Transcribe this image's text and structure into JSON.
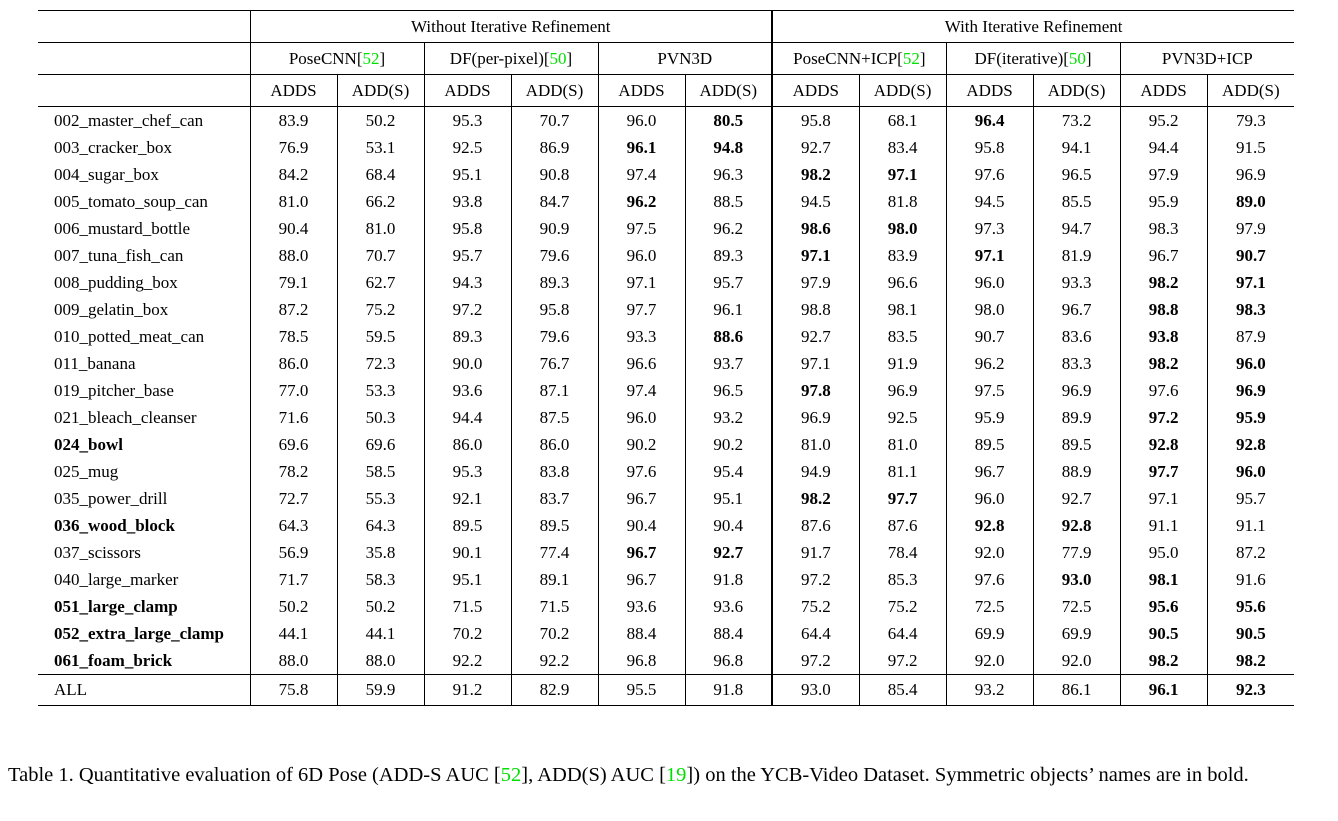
{
  "colors": {
    "citation_green": "#00e000"
  },
  "table": {
    "group_headers": [
      {
        "label": "Without Iterative Refinement"
      },
      {
        "label": "With Iterative Refinement"
      }
    ],
    "methods": [
      {
        "pre": "PoseCNN[",
        "cite": "52",
        "post": "]"
      },
      {
        "pre": "DF(per-pixel)[",
        "cite": "50",
        "post": "]"
      },
      {
        "pre": "PVN3D",
        "cite": "",
        "post": ""
      },
      {
        "pre": "PoseCNN+ICP[",
        "cite": "52",
        "post": "]"
      },
      {
        "pre": "DF(iterative)[",
        "cite": "50",
        "post": "]"
      },
      {
        "pre": "PVN3D+ICP",
        "cite": "",
        "post": ""
      }
    ],
    "metric_headers": [
      "ADDS",
      "ADD(S)"
    ],
    "rows": [
      {
        "name": "002_master_chef_can",
        "name_bold": false,
        "values": [
          "83.9",
          "50.2",
          "95.3",
          "70.7",
          "96.0",
          "80.5",
          "95.8",
          "68.1",
          "96.4",
          "73.2",
          "95.2",
          "79.3"
        ],
        "bold": [
          5,
          8
        ]
      },
      {
        "name": "003_cracker_box",
        "name_bold": false,
        "values": [
          "76.9",
          "53.1",
          "92.5",
          "86.9",
          "96.1",
          "94.8",
          "92.7",
          "83.4",
          "95.8",
          "94.1",
          "94.4",
          "91.5"
        ],
        "bold": [
          4,
          5
        ]
      },
      {
        "name": "004_sugar_box",
        "name_bold": false,
        "values": [
          "84.2",
          "68.4",
          "95.1",
          "90.8",
          "97.4",
          "96.3",
          "98.2",
          "97.1",
          "97.6",
          "96.5",
          "97.9",
          "96.9"
        ],
        "bold": [
          6,
          7
        ]
      },
      {
        "name": "005_tomato_soup_can",
        "name_bold": false,
        "values": [
          "81.0",
          "66.2",
          "93.8",
          "84.7",
          "96.2",
          "88.5",
          "94.5",
          "81.8",
          "94.5",
          "85.5",
          "95.9",
          "89.0"
        ],
        "bold": [
          4,
          11
        ]
      },
      {
        "name": "006_mustard_bottle",
        "name_bold": false,
        "values": [
          "90.4",
          "81.0",
          "95.8",
          "90.9",
          "97.5",
          "96.2",
          "98.6",
          "98.0",
          "97.3",
          "94.7",
          "98.3",
          "97.9"
        ],
        "bold": [
          6,
          7
        ]
      },
      {
        "name": "007_tuna_fish_can",
        "name_bold": false,
        "values": [
          "88.0",
          "70.7",
          "95.7",
          "79.6",
          "96.0",
          "89.3",
          "97.1",
          "83.9",
          "97.1",
          "81.9",
          "96.7",
          "90.7"
        ],
        "bold": [
          6,
          8,
          11
        ]
      },
      {
        "name": "008_pudding_box",
        "name_bold": false,
        "values": [
          "79.1",
          "62.7",
          "94.3",
          "89.3",
          "97.1",
          "95.7",
          "97.9",
          "96.6",
          "96.0",
          "93.3",
          "98.2",
          "97.1"
        ],
        "bold": [
          10,
          11
        ]
      },
      {
        "name": "009_gelatin_box",
        "name_bold": false,
        "values": [
          "87.2",
          "75.2",
          "97.2",
          "95.8",
          "97.7",
          "96.1",
          "98.8",
          "98.1",
          "98.0",
          "96.7",
          "98.8",
          "98.3"
        ],
        "bold": [
          10,
          11
        ]
      },
      {
        "name": "010_potted_meat_can",
        "name_bold": false,
        "values": [
          "78.5",
          "59.5",
          "89.3",
          "79.6",
          "93.3",
          "88.6",
          "92.7",
          "83.5",
          "90.7",
          "83.6",
          "93.8",
          "87.9"
        ],
        "bold": [
          5,
          10
        ]
      },
      {
        "name": "011_banana",
        "name_bold": false,
        "values": [
          "86.0",
          "72.3",
          "90.0",
          "76.7",
          "96.6",
          "93.7",
          "97.1",
          "91.9",
          "96.2",
          "83.3",
          "98.2",
          "96.0"
        ],
        "bold": [
          10,
          11
        ]
      },
      {
        "name": "019_pitcher_base",
        "name_bold": false,
        "values": [
          "77.0",
          "53.3",
          "93.6",
          "87.1",
          "97.4",
          "96.5",
          "97.8",
          "96.9",
          "97.5",
          "96.9",
          "97.6",
          "96.9"
        ],
        "bold": [
          6,
          11
        ]
      },
      {
        "name": "021_bleach_cleanser",
        "name_bold": false,
        "values": [
          "71.6",
          "50.3",
          "94.4",
          "87.5",
          "96.0",
          "93.2",
          "96.9",
          "92.5",
          "95.9",
          "89.9",
          "97.2",
          "95.9"
        ],
        "bold": [
          10,
          11
        ]
      },
      {
        "name": "024_bowl",
        "name_bold": true,
        "values": [
          "69.6",
          "69.6",
          "86.0",
          "86.0",
          "90.2",
          "90.2",
          "81.0",
          "81.0",
          "89.5",
          "89.5",
          "92.8",
          "92.8"
        ],
        "bold": [
          10,
          11
        ]
      },
      {
        "name": "025_mug",
        "name_bold": false,
        "values": [
          "78.2",
          "58.5",
          "95.3",
          "83.8",
          "97.6",
          "95.4",
          "94.9",
          "81.1",
          "96.7",
          "88.9",
          "97.7",
          "96.0"
        ],
        "bold": [
          10,
          11
        ]
      },
      {
        "name": "035_power_drill",
        "name_bold": false,
        "values": [
          "72.7",
          "55.3",
          "92.1",
          "83.7",
          "96.7",
          "95.1",
          "98.2",
          "97.7",
          "96.0",
          "92.7",
          "97.1",
          "95.7"
        ],
        "bold": [
          6,
          7
        ]
      },
      {
        "name": "036_wood_block",
        "name_bold": true,
        "values": [
          "64.3",
          "64.3",
          "89.5",
          "89.5",
          "90.4",
          "90.4",
          "87.6",
          "87.6",
          "92.8",
          "92.8",
          "91.1",
          "91.1"
        ],
        "bold": [
          8,
          9
        ]
      },
      {
        "name": "037_scissors",
        "name_bold": false,
        "values": [
          "56.9",
          "35.8",
          "90.1",
          "77.4",
          "96.7",
          "92.7",
          "91.7",
          "78.4",
          "92.0",
          "77.9",
          "95.0",
          "87.2"
        ],
        "bold": [
          4,
          5
        ]
      },
      {
        "name": "040_large_marker",
        "name_bold": false,
        "values": [
          "71.7",
          "58.3",
          "95.1",
          "89.1",
          "96.7",
          "91.8",
          "97.2",
          "85.3",
          "97.6",
          "93.0",
          "98.1",
          "91.6"
        ],
        "bold": [
          9,
          10
        ]
      },
      {
        "name": "051_large_clamp",
        "name_bold": true,
        "values": [
          "50.2",
          "50.2",
          "71.5",
          "71.5",
          "93.6",
          "93.6",
          "75.2",
          "75.2",
          "72.5",
          "72.5",
          "95.6",
          "95.6"
        ],
        "bold": [
          10,
          11
        ]
      },
      {
        "name": "052_extra_large_clamp",
        "name_bold": true,
        "values": [
          "44.1",
          "44.1",
          "70.2",
          "70.2",
          "88.4",
          "88.4",
          "64.4",
          "64.4",
          "69.9",
          "69.9",
          "90.5",
          "90.5"
        ],
        "bold": [
          10,
          11
        ]
      },
      {
        "name": "061_foam_brick",
        "name_bold": true,
        "values": [
          "88.0",
          "88.0",
          "92.2",
          "92.2",
          "96.8",
          "96.8",
          "97.2",
          "97.2",
          "92.0",
          "92.0",
          "98.2",
          "98.2"
        ],
        "bold": [
          10,
          11
        ]
      }
    ],
    "footer_row": {
      "name": "ALL",
      "name_bold": false,
      "values": [
        "75.8",
        "59.9",
        "91.2",
        "82.9",
        "95.5",
        "91.8",
        "93.0",
        "85.4",
        "93.2",
        "86.1",
        "96.1",
        "92.3"
      ],
      "bold": [
        10,
        11
      ]
    }
  },
  "caption": {
    "parts": [
      "Table 1. Quantitative evaluation of 6D Pose (ADD-S AUC [",
      "52",
      "], ADD(S) AUC [",
      "19",
      "]) on the YCB-Video Dataset. Symmetric objects’ names are in bold."
    ]
  }
}
